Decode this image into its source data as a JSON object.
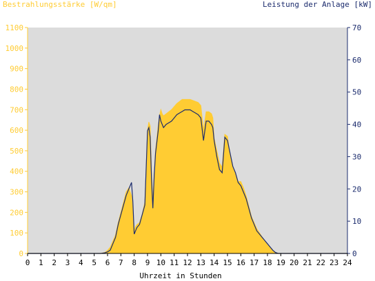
{
  "chart_data": {
    "type": "area",
    "title_left": "Bestrahlungsstärke [W/qm]",
    "title_right": "Leistung der Anlage [kW]",
    "xlabel": "Uhrzeit in Stunden",
    "x_ticks": [
      "0",
      "1",
      "2",
      "3",
      "4",
      "5",
      "6",
      "7",
      "8",
      "9",
      "10",
      "11",
      "12",
      "13",
      "14",
      "15",
      "16",
      "17",
      "18",
      "19",
      "20",
      "21",
      "22",
      "23",
      "24"
    ],
    "xlim": [
      0,
      24
    ],
    "y_left_ticks": [
      "0",
      "100",
      "200",
      "300",
      "400",
      "500",
      "600",
      "700",
      "800",
      "900",
      "1000",
      "1100"
    ],
    "ylim_left": [
      0,
      1100
    ],
    "y_right_ticks": [
      "0",
      "10",
      "20",
      "30",
      "40",
      "50",
      "60",
      "70"
    ],
    "ylim_right": [
      0,
      70
    ],
    "colors": {
      "irradiance": "#ffcc33",
      "power": "#1a2a6c",
      "plot_bg": "#dcdcdc",
      "left_axis": "#ffcc33",
      "right_axis": "#1a2a6c"
    },
    "series": [
      {
        "name": "Bestrahlungsstärke [W/qm]",
        "axis": "left",
        "x": [
          5.5,
          5.8,
          6.0,
          6.2,
          6.4,
          6.6,
          6.8,
          7.0,
          7.2,
          7.4,
          7.6,
          7.8,
          7.9,
          8.0,
          8.1,
          8.2,
          8.4,
          8.6,
          8.8,
          9.0,
          9.1,
          9.2,
          9.3,
          9.4,
          9.5,
          9.6,
          9.8,
          9.9,
          10.0,
          10.1,
          10.2,
          10.4,
          10.6,
          10.8,
          11.0,
          11.2,
          11.4,
          11.6,
          11.8,
          12.0,
          12.2,
          12.4,
          12.6,
          12.8,
          13.0,
          13.2,
          13.4,
          13.6,
          13.8,
          13.9,
          14.0,
          14.2,
          14.4,
          14.6,
          14.8,
          15.0,
          15.1,
          15.2,
          15.3,
          15.4,
          15.5,
          15.6,
          15.8,
          16.0,
          16.2,
          16.4,
          16.6,
          16.8,
          17.0,
          17.2,
          17.4,
          17.6,
          17.8,
          18.0,
          18.2,
          18.4,
          18.6,
          18.8,
          19.0,
          19.2,
          19.4,
          19.6
        ],
        "y": [
          0,
          5,
          15,
          30,
          60,
          90,
          150,
          200,
          250,
          300,
          320,
          280,
          200,
          110,
          130,
          140,
          150,
          190,
          250,
          600,
          640,
          620,
          400,
          250,
          380,
          500,
          620,
          670,
          700,
          680,
          670,
          680,
          690,
          700,
          715,
          730,
          740,
          750,
          750,
          750,
          750,
          745,
          740,
          735,
          720,
          600,
          690,
          690,
          680,
          660,
          560,
          500,
          440,
          420,
          580,
          570,
          520,
          480,
          450,
          420,
          400,
          390,
          350,
          350,
          320,
          280,
          230,
          180,
          150,
          120,
          100,
          80,
          60,
          40,
          30,
          15,
          5,
          0,
          0,
          0,
          0,
          0
        ]
      },
      {
        "name": "Leistung der Anlage [kW]",
        "axis": "right",
        "x": [
          5.5,
          5.8,
          6.0,
          6.2,
          6.4,
          6.6,
          6.8,
          7.0,
          7.2,
          7.4,
          7.6,
          7.8,
          7.9,
          8.0,
          8.1,
          8.2,
          8.4,
          8.6,
          8.8,
          9.0,
          9.1,
          9.2,
          9.3,
          9.4,
          9.5,
          9.6,
          9.8,
          9.9,
          10.0,
          10.1,
          10.2,
          10.4,
          10.6,
          10.8,
          11.0,
          11.2,
          11.4,
          11.6,
          11.8,
          12.0,
          12.2,
          12.4,
          12.6,
          12.8,
          13.0,
          13.2,
          13.4,
          13.6,
          13.8,
          13.9,
          14.0,
          14.2,
          14.4,
          14.6,
          14.8,
          15.0,
          15.1,
          15.2,
          15.3,
          15.4,
          15.5,
          15.6,
          15.8,
          16.0,
          16.2,
          16.4,
          16.6,
          16.8,
          17.0,
          17.2,
          17.4,
          17.6,
          17.8,
          18.0,
          18.2,
          18.4,
          18.6,
          18.8,
          19.0,
          19.2,
          19.4,
          19.6
        ],
        "y": [
          0,
          0.2,
          0.5,
          1,
          3,
          5,
          9,
          12,
          15,
          18,
          20,
          22,
          16,
          6,
          7,
          8,
          9,
          12,
          15,
          38,
          39,
          36,
          23,
          14,
          24,
          31,
          38,
          43,
          41,
          40,
          39,
          40,
          40.5,
          41,
          42,
          43,
          43.5,
          44,
          44.5,
          44.5,
          44.5,
          44,
          43.5,
          43,
          42,
          35,
          41,
          41,
          40,
          39,
          35,
          30,
          26,
          25,
          36,
          35,
          33,
          31,
          29,
          27,
          26,
          25,
          22,
          21,
          19,
          17,
          14,
          11,
          9,
          7,
          6,
          5,
          4,
          3,
          2,
          1,
          0.3,
          0,
          0,
          0,
          0,
          0
        ]
      }
    ]
  }
}
